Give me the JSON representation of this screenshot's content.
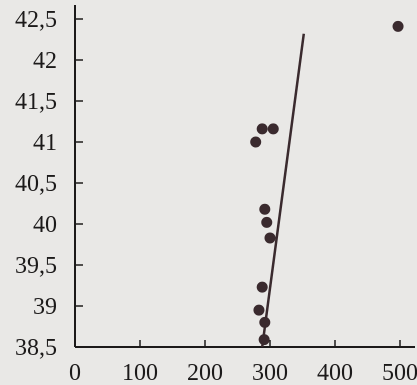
{
  "chart_data": {
    "type": "scatter",
    "title": "",
    "xlabel": "",
    "ylabel": "",
    "xlim": [
      0,
      500
    ],
    "ylim": [
      38.5,
      42.5
    ],
    "x_ticks": [
      0,
      100,
      200,
      300,
      400,
      500
    ],
    "y_ticks": [
      38.5,
      39,
      39.5,
      40,
      40.5,
      41,
      41.5,
      42,
      42.5
    ],
    "x_tick_labels": [
      "0",
      "100",
      "200",
      "300",
      "400",
      "500"
    ],
    "y_tick_labels": [
      "38,5",
      "39",
      "39,5",
      "40",
      "40,5",
      "41",
      "41,5",
      "42",
      "42,5"
    ],
    "grid": false,
    "series": [
      {
        "points": [
          {
            "x": 278,
            "y": 41.0
          },
          {
            "x": 288,
            "y": 41.16
          },
          {
            "x": 305,
            "y": 41.16
          },
          {
            "x": 292,
            "y": 40.18
          },
          {
            "x": 295,
            "y": 40.02
          },
          {
            "x": 300,
            "y": 39.83
          },
          {
            "x": 288,
            "y": 39.23
          },
          {
            "x": 283,
            "y": 38.95
          },
          {
            "x": 292,
            "y": 38.8
          },
          {
            "x": 291,
            "y": 38.59
          },
          {
            "x": 497,
            "y": 42.41
          }
        ]
      }
    ],
    "trend_line": {
      "x": [
        288,
        352
      ],
      "y": [
        38.5,
        42.32
      ]
    },
    "colors": {
      "points": "#3a2a2e",
      "line": "#3a2a2e",
      "axis": "#1c1a1a",
      "background": "#e9e8e6"
    }
  }
}
